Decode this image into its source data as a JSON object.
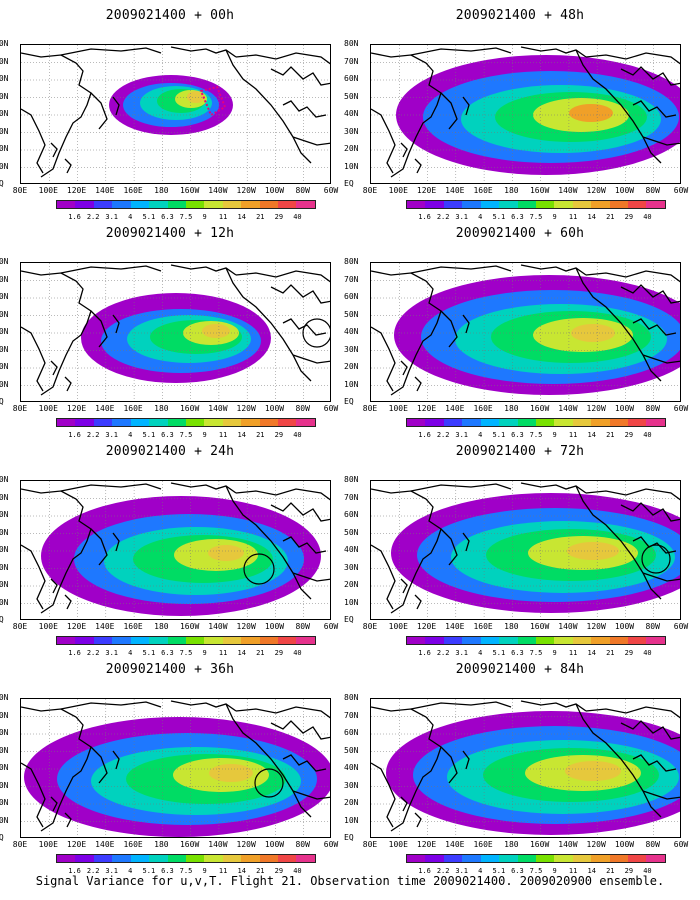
{
  "caption": "Signal Variance for u,v,T. Flight 21. Observation time 2009021400. 2009020900 ensemble.",
  "lat_labels": [
    "80N",
    "70N",
    "60N",
    "50N",
    "40N",
    "30N",
    "20N",
    "10N",
    "EQ"
  ],
  "lon_labels": [
    "80E",
    "100E",
    "120E",
    "140E",
    "160E",
    "180",
    "160W",
    "140W",
    "120W",
    "100W",
    "80W",
    "60W"
  ],
  "colorbar": {
    "colors": [
      "#a000c8",
      "#7d00e6",
      "#3c3cff",
      "#1e78ff",
      "#00b4ff",
      "#00d2be",
      "#00dc64",
      "#78e100",
      "#c8e632",
      "#e6c83c",
      "#f0a028",
      "#f07828",
      "#f04646",
      "#e6328c"
    ],
    "labels": [
      "1.6",
      "2.2",
      "3.1",
      "4",
      "5.1",
      "6.3",
      "7.5",
      "9",
      "11",
      "14",
      "21",
      "29",
      "40"
    ]
  },
  "panels": [
    {
      "id": "p00",
      "title": "2009021400 + 00h"
    },
    {
      "id": "p12",
      "title": "2009021400 + 12h"
    },
    {
      "id": "p24",
      "title": "2009021400 + 24h"
    },
    {
      "id": "p36",
      "title": "2009021400 + 36h"
    },
    {
      "id": "p48",
      "title": "2009021400 + 48h"
    },
    {
      "id": "p60",
      "title": "2009021400 + 60h"
    },
    {
      "id": "p72",
      "title": "2009021400 + 72h"
    },
    {
      "id": "p84",
      "title": "2009021400 + 84h"
    }
  ]
}
